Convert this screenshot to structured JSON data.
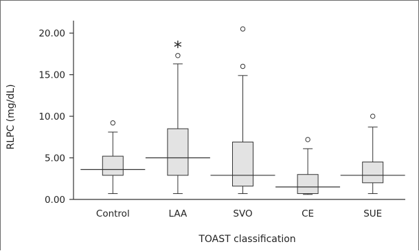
{
  "chart_data": {
    "type": "box",
    "title": "",
    "xlabel": "TOAST classification",
    "ylabel": "RLPC (mg/dL)",
    "ylim": [
      0,
      21.5
    ],
    "yticks": [
      0,
      5,
      10,
      15,
      20
    ],
    "ytick_labels": [
      "0.00",
      "5.00",
      "10.00",
      "15.00",
      "20.00"
    ],
    "grid": false,
    "categories": [
      "Control",
      "LAA",
      "SVO",
      "CE",
      "SUE"
    ],
    "boxes": [
      {
        "category": "Control",
        "whisker_low": 0.7,
        "q1": 2.9,
        "median": 3.6,
        "q3": 5.2,
        "whisker_high": 8.1,
        "outliers": [
          9.2
        ],
        "annotation": ""
      },
      {
        "category": "LAA",
        "whisker_low": 0.7,
        "q1": 2.9,
        "median": 5.0,
        "q3": 8.5,
        "whisker_high": 16.3,
        "outliers": [
          17.3
        ],
        "annotation": "*"
      },
      {
        "category": "SVO",
        "whisker_low": 0.7,
        "q1": 1.6,
        "median": 2.9,
        "q3": 6.9,
        "whisker_high": 14.9,
        "outliers": [
          16.0,
          20.5
        ],
        "annotation": ""
      },
      {
        "category": "CE",
        "whisker_low": 0.6,
        "q1": 0.7,
        "median": 1.5,
        "q3": 3.0,
        "whisker_high": 6.1,
        "outliers": [
          7.2
        ],
        "annotation": ""
      },
      {
        "category": "SUE",
        "whisker_low": 0.7,
        "q1": 2.0,
        "median": 2.9,
        "q3": 4.5,
        "whisker_high": 8.7,
        "outliers": [
          10.0
        ],
        "annotation": ""
      }
    ],
    "colors": {
      "box_fill": "#e3e3e3",
      "stroke": "#333333",
      "outlier_fill": "#ffffff"
    }
  }
}
